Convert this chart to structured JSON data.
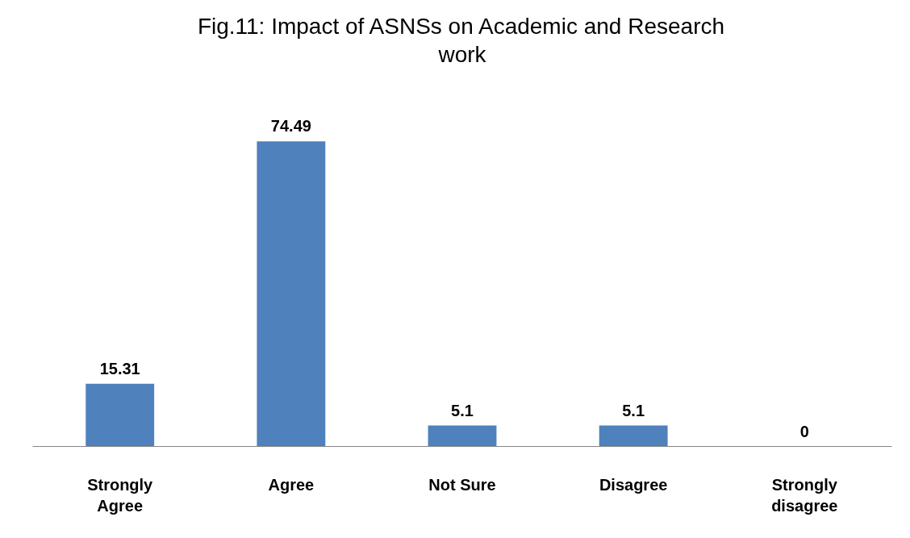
{
  "chart_data": {
    "type": "bar",
    "title": "Fig.11: Impact of ASNSs on Academic and Research work",
    "categories": [
      "Strongly Agree",
      "Agree",
      "Not Sure",
      "Disagree",
      "Strongly disagree"
    ],
    "values": [
      15.31,
      74.49,
      5.1,
      5.1,
      0
    ],
    "color": "#4f81bd",
    "data_labels": true,
    "grid": false
  }
}
